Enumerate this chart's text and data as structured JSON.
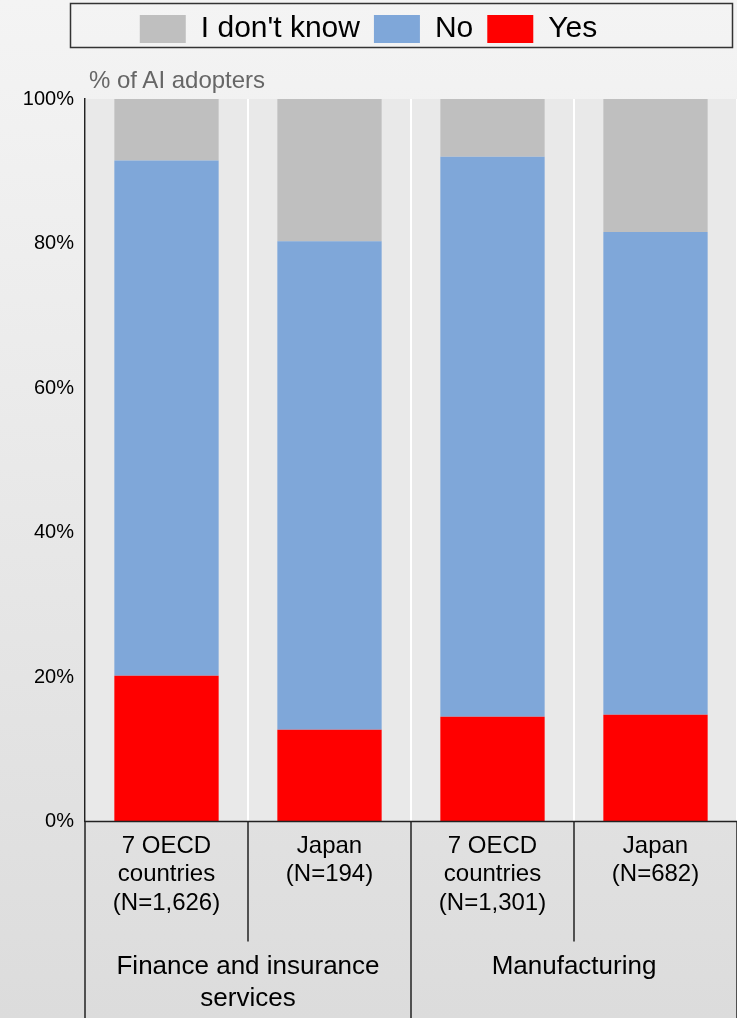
{
  "chart_data": {
    "type": "bar",
    "stacked": true,
    "ylabel": "% of AI adopters",
    "categories": [
      "7 OECD\ncountries\n(N=1,626)",
      "Japan\n(N=194)",
      "7 OECD\ncountries\n(N=1,301)",
      "Japan\n(N=682)"
    ],
    "series": [
      {
        "name": "Yes",
        "color": "#ff0000",
        "values": [
          20.2,
          12.7,
          14.5,
          14.8
        ]
      },
      {
        "name": "No",
        "color": "#7fa7d9",
        "values": [
          71.3,
          67.6,
          77.5,
          66.8
        ]
      },
      {
        "name": "I don't know",
        "color": "#bfbfbf",
        "values": [
          8.5,
          19.7,
          8.0,
          18.4
        ]
      }
    ],
    "ylim": [
      0,
      100
    ],
    "yticks": [
      {
        "value": 0,
        "label": "0%"
      },
      {
        "value": 20,
        "label": "20%"
      },
      {
        "value": 40,
        "label": "40%"
      },
      {
        "value": 60,
        "label": "60%"
      },
      {
        "value": 80,
        "label": "80%"
      },
      {
        "value": 100,
        "label": "100%"
      }
    ],
    "grid": "x",
    "legend": "top",
    "annotations": [
      "Finance and insurance services",
      "Manufacturing"
    ]
  }
}
